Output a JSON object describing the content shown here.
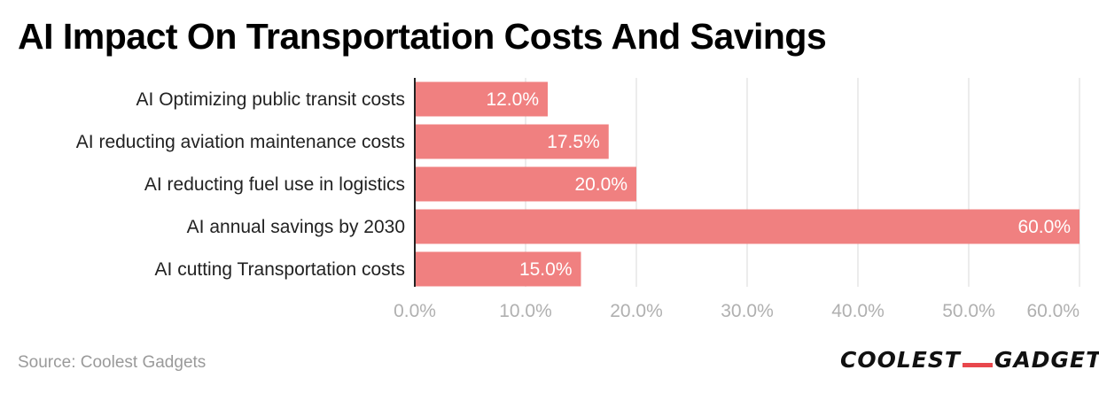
{
  "title": "AI Impact On Transportation Costs And Savings",
  "source": "Source: Coolest Gadgets",
  "brand": {
    "left": "COOLEST",
    "right": "GADGETS"
  },
  "colors": {
    "bar": "#f08080",
    "grid": "#d9d9d9",
    "axis": "#222222"
  },
  "chart_data": {
    "type": "bar",
    "orientation": "horizontal",
    "categories": [
      "AI Optimizing public transit costs",
      "AI reducting aviation maintenance costs",
      "AI reducting fuel use in logistics",
      "AI annual savings by 2030",
      "AI cutting Transportation costs"
    ],
    "values": [
      12.0,
      17.5,
      20.0,
      60.0,
      15.0
    ],
    "value_labels": [
      "12.0%",
      "17.5%",
      "20.0%",
      "60.0%",
      "15.0%"
    ],
    "xlim": [
      0,
      60
    ],
    "xticks": [
      0,
      10,
      20,
      30,
      40,
      50,
      60
    ],
    "xtick_labels": [
      "0.0%",
      "10.0%",
      "20.0%",
      "30.0%",
      "40.0%",
      "50.0%",
      "60.0%"
    ],
    "grid": true,
    "xlabel": "",
    "ylabel": ""
  }
}
